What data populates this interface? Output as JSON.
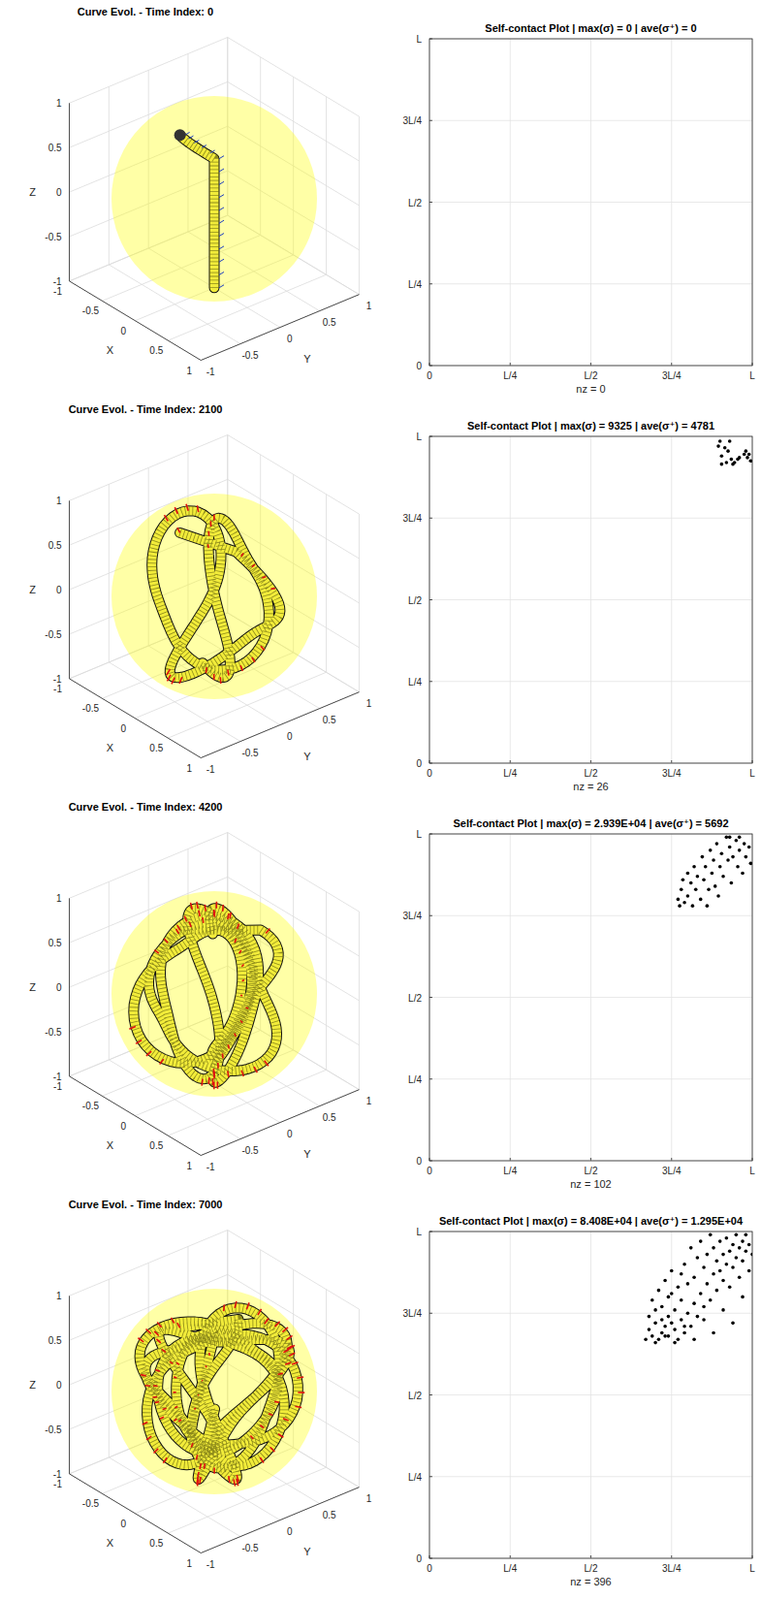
{
  "chart_data": [
    {
      "type": "curve3d",
      "title": "Curve Evol. - Time Index: 0",
      "x_label": "X",
      "y_label": "Y",
      "z_label": "Z",
      "xlim": [
        -1,
        1
      ],
      "ylim": [
        -1,
        1
      ],
      "zlim": [
        -1,
        1
      ],
      "xticks": [
        -1,
        -0.5,
        0,
        0.5,
        1
      ],
      "yticks": [
        -1,
        -0.5,
        0,
        0.5,
        1
      ],
      "zticks": [
        -1,
        -0.5,
        0,
        0.5,
        1
      ],
      "grid": true,
      "color": "#ffff00"
    },
    {
      "type": "scatter",
      "title": "Self-contact Plot | max(σ) = 0 | ave(σ⁺) = 0",
      "x_label": "nz = 0",
      "xlim": [
        0,
        1
      ],
      "ylim": [
        0,
        1
      ],
      "xticks": [
        0,
        {
          "value": 0.25,
          "label": "L/4"
        },
        {
          "value": 0.5,
          "label": "L/2"
        },
        {
          "value": 0.75,
          "label": "3L/4"
        },
        {
          "value": 1,
          "label": "L"
        }
      ],
      "yticks": [
        0,
        {
          "value": 0.25,
          "label": "L/4"
        },
        {
          "value": 0.5,
          "label": "L/2"
        },
        {
          "value": 0.75,
          "label": "3L/4"
        },
        {
          "value": 1,
          "label": "L"
        }
      ],
      "grid": true,
      "color": "#000000",
      "marker": "dot",
      "x": [],
      "values": []
    },
    {
      "type": "curve3d",
      "title": "Curve Evol. - Time Index: 2100",
      "x_label": "X",
      "y_label": "Y",
      "z_label": "Z",
      "xlim": [
        -1,
        1
      ],
      "ylim": [
        -1,
        1
      ],
      "zlim": [
        -1,
        1
      ],
      "xticks": [
        -1,
        -0.5,
        0,
        0.5,
        1
      ],
      "yticks": [
        -1,
        -0.5,
        0,
        0.5,
        1
      ],
      "zticks": [
        -1,
        -0.5,
        0,
        0.5,
        1
      ],
      "grid": true,
      "color": "#ffff00"
    },
    {
      "type": "scatter",
      "title": "Self-contact Plot | max(σ) = 9325 | ave(σ⁺) = 4781",
      "x_label": "nz = 26",
      "xlim": [
        0,
        1
      ],
      "ylim": [
        0,
        1
      ],
      "xticks": [
        0,
        {
          "value": 0.25,
          "label": "L/4"
        },
        {
          "value": 0.5,
          "label": "L/2"
        },
        {
          "value": 0.75,
          "label": "3L/4"
        },
        {
          "value": 1,
          "label": "L"
        }
      ],
      "yticks": [
        0,
        {
          "value": 0.25,
          "label": "L/4"
        },
        {
          "value": 0.5,
          "label": "L/2"
        },
        {
          "value": 0.75,
          "label": "3L/4"
        },
        {
          "value": 1,
          "label": "L"
        }
      ],
      "grid": true,
      "color": "#000000",
      "marker": "dot",
      "x": [
        0.895,
        0.9,
        0.905,
        0.915,
        0.925,
        0.93,
        0.935,
        0.94,
        0.945,
        0.955,
        0.96,
        0.975,
        0.98,
        0.985,
        0.99,
        0.995,
        0.905,
        0.92
      ],
      "values": [
        0.97,
        0.985,
        0.94,
        0.965,
        0.955,
        0.985,
        0.93,
        0.915,
        0.92,
        0.93,
        0.935,
        0.945,
        0.955,
        0.935,
        0.945,
        0.925,
        0.915,
        0.92
      ]
    },
    {
      "type": "curve3d",
      "title": "Curve Evol. - Time Index: 4200",
      "x_label": "X",
      "y_label": "Y",
      "z_label": "Z",
      "xlim": [
        -1,
        1
      ],
      "ylim": [
        -1,
        1
      ],
      "zlim": [
        -1,
        1
      ],
      "xticks": [
        -1,
        -0.5,
        0,
        0.5,
        1
      ],
      "yticks": [
        -1,
        -0.5,
        0,
        0.5,
        1
      ],
      "zticks": [
        -1,
        -0.5,
        0,
        0.5,
        1
      ],
      "grid": true,
      "color": "#ffff00"
    },
    {
      "type": "scatter",
      "title": "Self-contact Plot | max(σ) = 2.939E+04 | ave(σ⁺) = 5692",
      "x_label": "nz = 102",
      "xlim": [
        0,
        1
      ],
      "ylim": [
        0,
        1
      ],
      "xticks": [
        0,
        {
          "value": 0.25,
          "label": "L/4"
        },
        {
          "value": 0.5,
          "label": "L/2"
        },
        {
          "value": 0.75,
          "label": "3L/4"
        },
        {
          "value": 1,
          "label": "L"
        }
      ],
      "yticks": [
        0,
        {
          "value": 0.25,
          "label": "L/4"
        },
        {
          "value": 0.5,
          "label": "L/2"
        },
        {
          "value": 0.75,
          "label": "3L/4"
        },
        {
          "value": 1,
          "label": "L"
        }
      ],
      "grid": true,
      "color": "#000000",
      "marker": "dot",
      "x": [
        0.77,
        0.775,
        0.78,
        0.785,
        0.79,
        0.8,
        0.8,
        0.81,
        0.815,
        0.82,
        0.825,
        0.83,
        0.84,
        0.845,
        0.85,
        0.855,
        0.86,
        0.865,
        0.87,
        0.875,
        0.88,
        0.885,
        0.89,
        0.895,
        0.9,
        0.905,
        0.91,
        0.92,
        0.925,
        0.93,
        0.935,
        0.94,
        0.95,
        0.955,
        0.96,
        0.97,
        0.975,
        0.98,
        0.99,
        0.995,
        0.93,
        0.96
      ],
      "values": [
        0.8,
        0.78,
        0.83,
        0.86,
        0.79,
        0.81,
        0.88,
        0.85,
        0.78,
        0.9,
        0.83,
        0.87,
        0.8,
        0.93,
        0.86,
        0.9,
        0.78,
        0.83,
        0.95,
        0.88,
        0.92,
        0.84,
        0.97,
        0.81,
        0.9,
        0.94,
        0.87,
        0.99,
        0.92,
        0.96,
        0.85,
        0.93,
        0.98,
        0.9,
        0.95,
        0.88,
        0.97,
        0.93,
        0.96,
        0.91,
        0.99,
        0.99
      ]
    },
    {
      "type": "curve3d",
      "title": "Curve Evol. - Time Index: 7000",
      "x_label": "X",
      "y_label": "Y",
      "z_label": "Z",
      "xlim": [
        -1,
        1
      ],
      "ylim": [
        -1,
        1
      ],
      "zlim": [
        -1,
        1
      ],
      "xticks": [
        -1,
        -0.5,
        0,
        0.5,
        1
      ],
      "yticks": [
        -1,
        -0.5,
        0,
        0.5,
        1
      ],
      "zticks": [
        -1,
        -0.5,
        0,
        0.5,
        1
      ],
      "grid": true,
      "color": "#ffff00"
    },
    {
      "type": "scatter",
      "title": "Self-contact Plot | max(σ) = 8.408E+04 | ave(σ⁺) = 1.295E+04",
      "x_label": "nz = 396",
      "xlim": [
        0,
        1
      ],
      "ylim": [
        0,
        1
      ],
      "xticks": [
        0,
        {
          "value": 0.25,
          "label": "L/4"
        },
        {
          "value": 0.5,
          "label": "L/2"
        },
        {
          "value": 0.75,
          "label": "3L/4"
        },
        {
          "value": 1,
          "label": "L"
        }
      ],
      "yticks": [
        0,
        {
          "value": 0.25,
          "label": "L/4"
        },
        {
          "value": 0.5,
          "label": "L/2"
        },
        {
          "value": 0.75,
          "label": "3L/4"
        },
        {
          "value": 1,
          "label": "L"
        }
      ],
      "grid": true,
      "color": "#000000",
      "marker": "dot",
      "x": [
        0.67,
        0.68,
        0.68,
        0.69,
        0.69,
        0.7,
        0.7,
        0.71,
        0.71,
        0.72,
        0.72,
        0.72,
        0.73,
        0.73,
        0.74,
        0.74,
        0.74,
        0.75,
        0.75,
        0.76,
        0.76,
        0.77,
        0.77,
        0.78,
        0.78,
        0.79,
        0.79,
        0.8,
        0.8,
        0.81,
        0.81,
        0.82,
        0.82,
        0.83,
        0.83,
        0.84,
        0.84,
        0.85,
        0.85,
        0.86,
        0.86,
        0.87,
        0.87,
        0.88,
        0.88,
        0.89,
        0.89,
        0.9,
        0.9,
        0.91,
        0.91,
        0.92,
        0.92,
        0.93,
        0.93,
        0.94,
        0.94,
        0.95,
        0.95,
        0.96,
        0.96,
        0.97,
        0.97,
        0.98,
        0.98,
        0.99,
        0.99,
        1.0,
        0.7,
        0.73,
        0.76,
        0.79,
        0.82,
        0.85,
        0.88,
        0.91,
        0.94,
        0.97,
        0.75,
        0.78
      ],
      "values": [
        0.67,
        0.7,
        0.74,
        0.68,
        0.79,
        0.72,
        0.76,
        0.67,
        0.82,
        0.69,
        0.73,
        0.77,
        0.71,
        0.85,
        0.68,
        0.74,
        0.8,
        0.72,
        0.88,
        0.7,
        0.76,
        0.67,
        0.83,
        0.73,
        0.79,
        0.69,
        0.9,
        0.75,
        0.84,
        0.71,
        0.95,
        0.78,
        0.86,
        0.74,
        0.92,
        0.81,
        0.97,
        0.77,
        0.89,
        0.84,
        0.93,
        0.79,
        0.99,
        0.87,
        0.95,
        0.82,
        0.91,
        0.88,
        0.97,
        0.85,
        0.93,
        0.9,
        0.98,
        0.83,
        0.94,
        0.89,
        0.96,
        0.92,
        0.99,
        0.86,
        0.95,
        0.91,
        0.97,
        0.94,
        0.99,
        0.88,
        0.96,
        0.93,
        0.66,
        0.68,
        0.66,
        0.71,
        0.67,
        0.73,
        0.69,
        0.76,
        0.72,
        0.8,
        0.81,
        0.87
      ]
    }
  ]
}
